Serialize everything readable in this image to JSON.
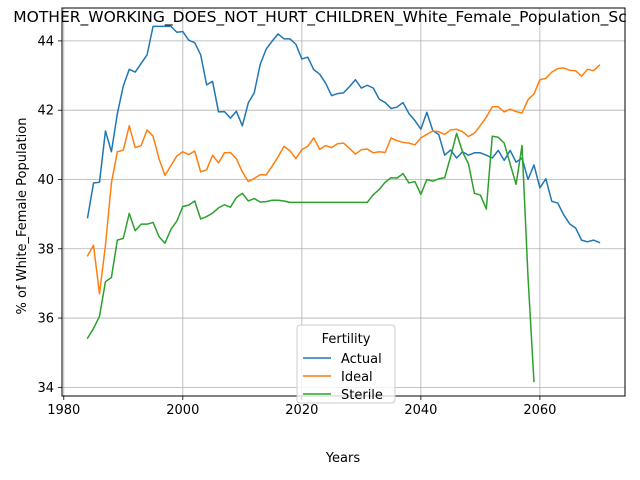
{
  "colors": {
    "Actual": "#1f77b4",
    "Ideal": "#ff7f0e",
    "Sterile": "#2ca02c",
    "grid": "#b0b0b0"
  },
  "chart_data": {
    "type": "line",
    "title": "MOTHER_WORKING_DOES_NOT_HURT_CHILDREN_White_Female_Population_Sc",
    "xlabel": "Years",
    "ylabel": "% of White_Female Population",
    "xlim": [
      1979.7,
      2074.3
    ],
    "ylim": [
      33.75,
      44.95
    ],
    "xticks": [
      1980,
      2000,
      2020,
      2040,
      2060
    ],
    "yticks": [
      34,
      36,
      38,
      40,
      42,
      44
    ],
    "grid": true,
    "legend": {
      "title": "Fertility",
      "placement": "lower center"
    },
    "series": [
      {
        "name": "Actual",
        "x": [
          1984,
          1985,
          1986,
          1987,
          1988,
          1989,
          1990,
          1991,
          1992,
          1993,
          1994,
          1995,
          1996,
          1997,
          1998,
          1999,
          2000,
          2001,
          2002,
          2003,
          2004,
          2005,
          2006,
          2007,
          2008,
          2009,
          2010,
          2011,
          2012,
          2013,
          2014,
          2015,
          2016,
          2017,
          2018,
          2019,
          2020,
          2021,
          2022,
          2023,
          2024,
          2025,
          2026,
          2027,
          2028,
          2029,
          2030,
          2031,
          2032,
          2033,
          2034,
          2035,
          2036,
          2037,
          2038,
          2039,
          2040,
          2041,
          2042,
          2043,
          2044,
          2045,
          2046,
          2047,
          2048,
          2049,
          2050,
          2051,
          2052,
          2053,
          2054,
          2055,
          2056,
          2057,
          2058,
          2059,
          2060,
          2061,
          2062,
          2063,
          2064,
          2065,
          2066,
          2067,
          2068,
          2069,
          2070
        ],
        "y": [
          38.9,
          39.9,
          39.92,
          41.4,
          40.8,
          41.9,
          42.7,
          43.18,
          43.1,
          43.35,
          43.6,
          44.42,
          44.42,
          44.42,
          44.42,
          44.25,
          44.27,
          44.02,
          43.95,
          43.6,
          42.73,
          42.83,
          41.95,
          41.96,
          41.77,
          41.97,
          41.55,
          42.21,
          42.5,
          43.32,
          43.76,
          43.99,
          44.2,
          44.06,
          44.06,
          43.9,
          43.48,
          43.53,
          43.17,
          43.04,
          42.78,
          42.42,
          42.48,
          42.5,
          42.68,
          42.88,
          42.64,
          42.72,
          42.64,
          42.32,
          42.22,
          42.05,
          42.09,
          42.22,
          41.9,
          41.7,
          41.45,
          41.94,
          41.41,
          41.3,
          40.7,
          40.85,
          40.62,
          40.8,
          40.7,
          40.77,
          40.77,
          40.7,
          40.62,
          40.84,
          40.55,
          40.84,
          40.5,
          40.62,
          40,
          40.42,
          39.76,
          40.02,
          39.37,
          39.32,
          38.98,
          38.72,
          38.6,
          38.25,
          38.2,
          38.25,
          38.18
        ]
      },
      {
        "name": "Ideal",
        "x": [
          1984,
          1985,
          1986,
          1987,
          1988,
          1989,
          1990,
          1991,
          1992,
          1993,
          1994,
          1995,
          1996,
          1997,
          1998,
          1999,
          2000,
          2001,
          2002,
          2003,
          2004,
          2005,
          2006,
          2007,
          2008,
          2009,
          2010,
          2011,
          2012,
          2013,
          2014,
          2015,
          2016,
          2017,
          2018,
          2019,
          2020,
          2021,
          2022,
          2023,
          2024,
          2025,
          2026,
          2027,
          2028,
          2029,
          2030,
          2031,
          2032,
          2033,
          2034,
          2035,
          2036,
          2037,
          2038,
          2039,
          2040,
          2041,
          2042,
          2043,
          2044,
          2045,
          2046,
          2047,
          2048,
          2049,
          2050,
          2051,
          2052,
          2053,
          2054,
          2055,
          2056,
          2057,
          2058,
          2059,
          2060,
          2061,
          2062,
          2063,
          2064,
          2065,
          2066,
          2067,
          2068,
          2069,
          2070
        ],
        "y": [
          37.8,
          38.1,
          36.7,
          38.1,
          39.9,
          40.8,
          40.85,
          41.55,
          40.92,
          40.98,
          41.43,
          41.25,
          40.6,
          40.12,
          40.4,
          40.68,
          40.8,
          40.72,
          40.82,
          40.22,
          40.28,
          40.7,
          40.48,
          40.77,
          40.78,
          40.6,
          40.22,
          39.94,
          40.03,
          40.14,
          40.13,
          40.38,
          40.65,
          40.96,
          40.83,
          40.6,
          40.86,
          40.96,
          41.2,
          40.87,
          40.98,
          40.92,
          41.03,
          41.05,
          40.9,
          40.73,
          40.86,
          40.88,
          40.77,
          40.8,
          40.78,
          41.2,
          41.12,
          41.07,
          41.05,
          41.0,
          41.2,
          41.3,
          41.4,
          41.38,
          41.3,
          41.43,
          41.45,
          41.38,
          41.24,
          41.34,
          41.56,
          41.8,
          42.1,
          42.1,
          41.95,
          42.03,
          41.96,
          41.92,
          42.3,
          42.47,
          42.88,
          42.92,
          43.1,
          43.2,
          43.22,
          43.15,
          43.14,
          42.98,
          43.18,
          43.14,
          43.3
        ]
      },
      {
        "name": "Sterile",
        "x": [
          1984,
          1985,
          1986,
          1987,
          1988,
          1989,
          1990,
          1991,
          1992,
          1993,
          1994,
          1995,
          1996,
          1997,
          1998,
          1999,
          2000,
          2001,
          2002,
          2003,
          2004,
          2005,
          2006,
          2007,
          2008,
          2009,
          2010,
          2011,
          2012,
          2013,
          2014,
          2015,
          2016,
          2017,
          2018,
          2019,
          2020,
          2021,
          2022,
          2023,
          2024,
          2025,
          2026,
          2027,
          2028,
          2029,
          2030,
          2031,
          2032,
          2033,
          2034,
          2035,
          2036,
          2037,
          2038,
          2039,
          2040,
          2041,
          2042,
          2043,
          2044,
          2045,
          2046,
          2047,
          2048,
          2049,
          2050,
          2051,
          2052,
          2053,
          2054,
          2055,
          2056,
          2057,
          2058,
          2059
        ],
        "y": [
          35.42,
          35.7,
          36.05,
          37.05,
          37.17,
          38.25,
          38.3,
          39.02,
          38.52,
          38.71,
          38.71,
          38.76,
          38.35,
          38.16,
          38.56,
          38.8,
          39.22,
          39.26,
          39.38,
          38.86,
          38.93,
          39.03,
          39.18,
          39.27,
          39.2,
          39.48,
          39.6,
          39.38,
          39.45,
          39.35,
          39.36,
          39.4,
          39.4,
          39.38,
          39.34,
          39.34,
          39.34,
          39.34,
          39.34,
          39.34,
          39.34,
          39.34,
          39.34,
          39.34,
          39.34,
          39.34,
          39.34,
          39.34,
          39.56,
          39.71,
          39.92,
          40.05,
          40.04,
          40.17,
          39.9,
          39.94,
          39.57,
          40.0,
          39.95,
          40.02,
          40.05,
          40.66,
          41.33,
          40.8,
          40.45,
          39.6,
          39.55,
          39.15,
          41.25,
          41.22,
          41.05,
          40.45,
          39.86,
          40.98,
          37.2,
          34.17
        ]
      }
    ]
  }
}
